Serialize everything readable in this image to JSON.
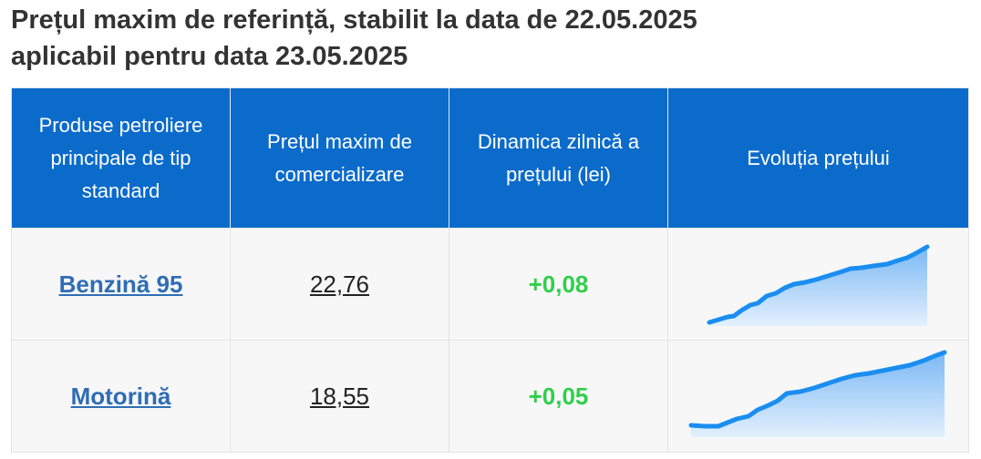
{
  "header": {
    "title": [
      "Prețul maxim de referință, stabilit la data de 22.05.2025",
      "aplicabil pentru data 23.05.2025"
    ]
  },
  "table": {
    "headers": [
      "Produse petroliere principale de tip standard",
      "Prețul maxim de comercializare",
      "Dinamica zilnică a prețului (lei)",
      "Evoluția prețului"
    ],
    "rows": [
      [
        "Benzină 95",
        "22,76",
        "+0,08"
      ],
      [
        "Motorină",
        "18,55",
        "+0,05"
      ]
    ]
  }
}
